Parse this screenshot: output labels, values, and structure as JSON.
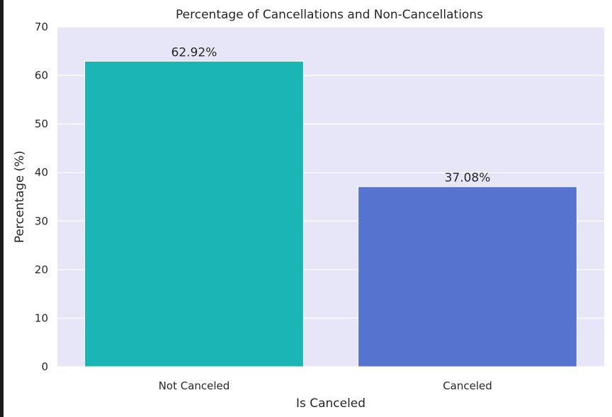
{
  "chart_data": {
    "type": "bar",
    "title": "Percentage of Cancellations and Non-Cancellations",
    "xlabel": "Is Canceled",
    "ylabel": "Percentage (%)",
    "categories": [
      "Not Canceled",
      "Canceled"
    ],
    "values": [
      62.92,
      37.08
    ],
    "data_labels": [
      "62.92%",
      "37.08%"
    ],
    "bar_colors": [
      "#1ab5b5",
      "#5573cf"
    ],
    "plot_background": "#e6e6f8",
    "grid": true,
    "ylim": [
      0,
      70
    ],
    "yticks": [
      0,
      10,
      20,
      30,
      40,
      50,
      60,
      70
    ],
    "ytick_labels": [
      "0",
      "10",
      "20",
      "30",
      "40",
      "50",
      "60",
      "70"
    ]
  }
}
